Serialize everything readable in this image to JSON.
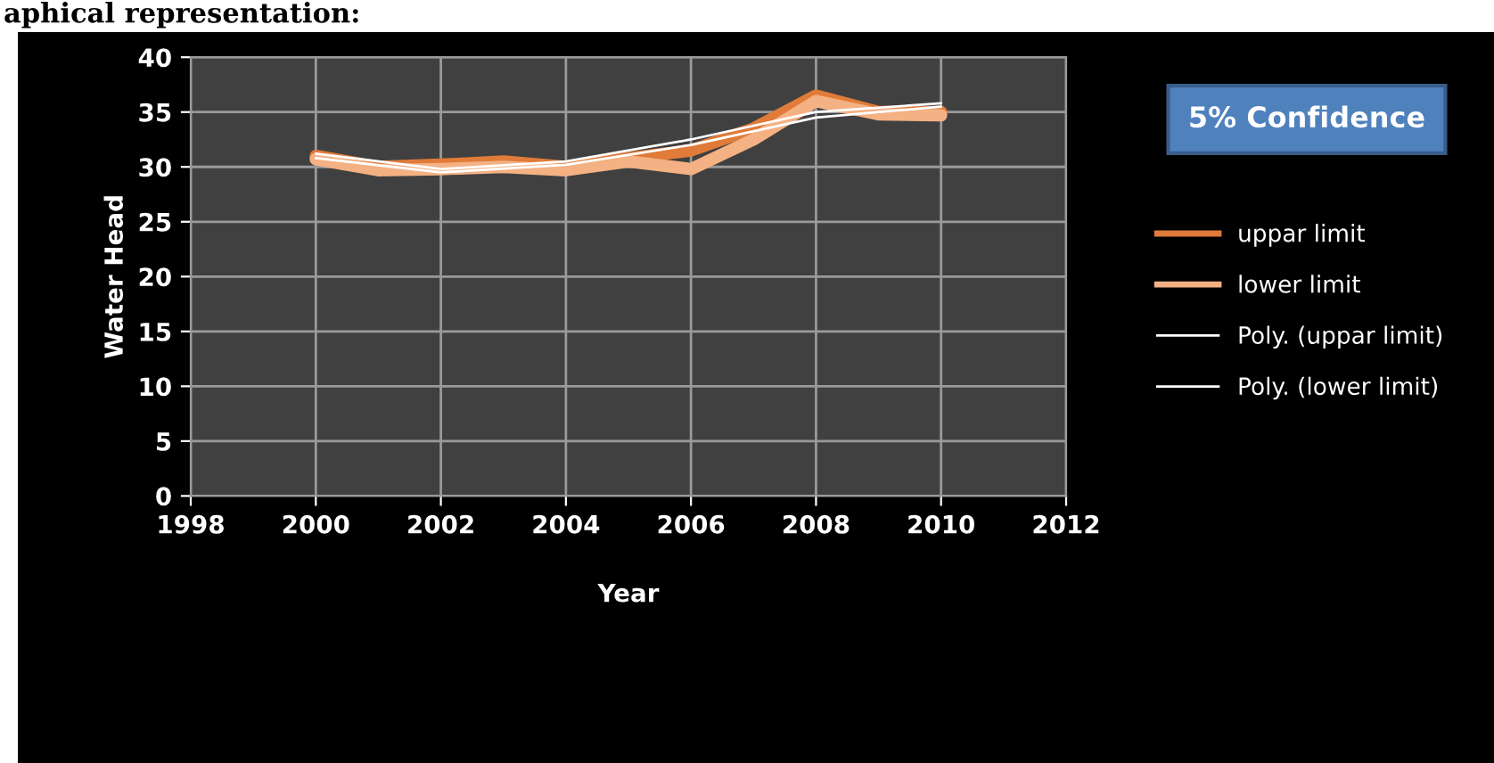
{
  "chart_data": {
    "type": "line",
    "xlabel": "Year",
    "ylabel": "Water Head",
    "x": [
      2000,
      2001,
      2002,
      2003,
      2004,
      2005,
      2006,
      2007,
      2008,
      2009,
      2010
    ],
    "series": [
      {
        "name": "uppar limit",
        "color": "#e07b39",
        "values": [
          31,
          30,
          30.2,
          30.5,
          30,
          30.8,
          31.5,
          33.5,
          36.5,
          35,
          35
        ]
      },
      {
        "name": "lower limit",
        "color": "#f4b183",
        "values": [
          30.7,
          29.7,
          29.8,
          30,
          29.7,
          30.5,
          29.8,
          32.5,
          36,
          34.8,
          34.7
        ]
      },
      {
        "name": "Poly. (uppar limit)",
        "color": "#ffffff",
        "x": [
          2000,
          2002,
          2004,
          2006,
          2008,
          2010
        ],
        "values": [
          31.2,
          29.8,
          30.5,
          32.5,
          35,
          35.8
        ]
      },
      {
        "name": "Poly. (lower limit)",
        "color": "#ffffff",
        "x": [
          2000,
          2002,
          2004,
          2006,
          2008,
          2010
        ],
        "values": [
          30.8,
          29.5,
          30.2,
          32,
          34.5,
          35.5
        ]
      }
    ],
    "xlim": [
      1998,
      2012
    ],
    "xticks": [
      1998,
      2000,
      2002,
      2004,
      2006,
      2008,
      2010,
      2012
    ],
    "ylim": [
      0,
      40
    ],
    "yticks": [
      0,
      5,
      10,
      15,
      20,
      25,
      30,
      35,
      40
    ],
    "grid": true,
    "legend": "right",
    "line_style": "solid",
    "annotations": [
      "aphical representation:",
      "5% Confidence"
    ]
  }
}
